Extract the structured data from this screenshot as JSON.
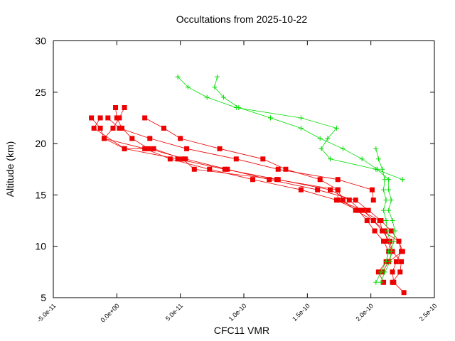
{
  "chart_data": {
    "type": "line",
    "title": "Occultations from 2025-10-22",
    "xlabel": "CFC11 VMR",
    "ylabel": "Altitude (km)",
    "xlim": [
      -5e-11,
      2.5e-10
    ],
    "ylim": [
      5,
      30
    ],
    "xticks": [
      -5e-11,
      0,
      5e-11,
      1e-10,
      1.5e-10,
      2e-10,
      2.5e-10
    ],
    "xtick_labels": [
      "-5.0e-11",
      "0.0e+00",
      "5.0e-11",
      "1.0e-10",
      "1.5e-10",
      "2.0e-10",
      "2.5e-10"
    ],
    "yticks": [
      5,
      10,
      15,
      20,
      25,
      30
    ],
    "ytick_labels": [
      "5",
      "10",
      "15",
      "20",
      "25",
      "30"
    ],
    "grid": false,
    "colors": {
      "red": "#ee0000",
      "green": "#00dd00",
      "axis": "#000000"
    },
    "series": [
      {
        "name": "profile-red-1",
        "color": "#ee0000",
        "marker": "square",
        "points": [
          [
            2.26e-10,
            5.5
          ],
          [
            2.18e-10,
            6.5
          ],
          [
            2.17e-10,
            7.5
          ],
          [
            2.2e-10,
            8.5
          ],
          [
            2.24e-10,
            9.5
          ],
          [
            2.22e-10,
            10.5
          ],
          [
            2.16e-10,
            11.5
          ],
          [
            2.08e-10,
            12.5
          ],
          [
            1.98e-10,
            13.5
          ],
          [
            1.88e-10,
            14.5
          ],
          [
            1.58e-10,
            15.5
          ],
          [
            1.2e-10,
            16.5
          ],
          [
            8.7e-11,
            17.5
          ],
          [
            5.4e-11,
            18.5
          ],
          [
            2.5e-11,
            19.5
          ],
          [
            1.2e-11,
            20.5
          ],
          [
            4e-12,
            21.5
          ],
          [
            0,
            22.5
          ],
          [
            -1e-12,
            23.5
          ]
        ]
      },
      {
        "name": "profile-red-2",
        "color": "#ee0000",
        "marker": "square",
        "points": [
          [
            2.1e-10,
            6.5
          ],
          [
            2.06e-10,
            7.5
          ],
          [
            2.12e-10,
            8.5
          ],
          [
            2.14e-10,
            9.5
          ],
          [
            2.1e-10,
            10.5
          ],
          [
            2.03e-10,
            11.5
          ],
          [
            1.97e-10,
            12.5
          ],
          [
            1.9e-10,
            13.5
          ],
          [
            1.73e-10,
            14.5
          ],
          [
            1.45e-10,
            15.5
          ],
          [
            1.07e-10,
            16.5
          ],
          [
            7.3e-11,
            17.5
          ],
          [
            4.2e-11,
            18.5
          ],
          [
            2.2e-11,
            19.5
          ],
          [
            -1e-11,
            20.5
          ],
          [
            -1.3e-11,
            21.5
          ],
          [
            -2e-11,
            22.5
          ]
        ]
      },
      {
        "name": "profile-red-3",
        "color": "#ee0000",
        "marker": "square",
        "points": [
          [
            2.09e-10,
            7.5
          ],
          [
            2.14e-10,
            8.5
          ],
          [
            2.17e-10,
            9.5
          ],
          [
            2.15e-10,
            10.5
          ],
          [
            2.09e-10,
            11.5
          ],
          [
            2.07e-10,
            12.5
          ],
          [
            1.92e-10,
            13.5
          ],
          [
            1.83e-10,
            14.5
          ],
          [
            1.68e-10,
            15.5
          ],
          [
            1.27e-10,
            16.5
          ],
          [
            8.5e-11,
            17.5
          ],
          [
            4.8e-11,
            18.5
          ],
          [
            6e-12,
            19.5
          ],
          [
            -1e-11,
            20.5
          ],
          [
            -3e-12,
            21.5
          ],
          [
            2e-12,
            22.5
          ],
          [
            6e-12,
            23.5
          ]
        ]
      },
      {
        "name": "profile-red-4",
        "color": "#ee0000",
        "marker": "square",
        "points": [
          [
            2.17e-10,
            6.5
          ],
          [
            2.23e-10,
            7.5
          ],
          [
            2.24e-10,
            8.5
          ],
          [
            2.17e-10,
            9.5
          ],
          [
            2.13e-10,
            10.5
          ],
          [
            2.11e-10,
            11.5
          ],
          [
            2.02e-10,
            12.5
          ],
          [
            1.88e-10,
            13.5
          ],
          [
            1.78e-10,
            14.5
          ],
          [
            1.74e-10,
            15.5
          ],
          [
            1.26e-10,
            16.5
          ],
          [
            6.1e-11,
            17.5
          ],
          [
            5.2e-11,
            18.5
          ],
          [
            2.9e-11,
            19.5
          ],
          [
            6e-12,
            19.5
          ],
          [
            -1.8e-11,
            21.5
          ],
          [
            -1.3e-11,
            22.5
          ]
        ]
      },
      {
        "name": "profile-red-5",
        "color": "#ee0000",
        "marker": "square",
        "points": [
          [
            2.14e-10,
            8.5
          ],
          [
            2.25e-10,
            9.5
          ],
          [
            2.22e-10,
            10.5
          ],
          [
            2.09e-10,
            11.5
          ],
          [
            2.02e-10,
            12.5
          ],
          [
            1.94e-10,
            13.5
          ],
          [
            1.74e-10,
            14.5
          ],
          [
            1.74e-10,
            15.5
          ],
          [
            1.6e-10,
            16.5
          ],
          [
            1.33e-10,
            17.5
          ],
          [
            1.15e-10,
            18.5
          ],
          [
            8.1e-11,
            19.5
          ],
          [
            5e-11,
            20.5
          ],
          [
            3.7e-11,
            21.5
          ],
          [
            2.2e-11,
            22.5
          ]
        ]
      },
      {
        "name": "profile-red-6",
        "color": "#ee0000",
        "marker": "square",
        "points": [
          [
            2.02e-10,
            14.5
          ],
          [
            2.01e-10,
            15.5
          ],
          [
            1.74e-10,
            16.5
          ],
          [
            1.27e-10,
            17.5
          ],
          [
            9.4e-11,
            18.5
          ],
          [
            5.5e-11,
            19.5
          ],
          [
            2.6e-11,
            20.5
          ],
          [
            2e-12,
            21.5
          ],
          [
            -7e-12,
            22.5
          ]
        ]
      },
      {
        "name": "profile-green-1",
        "color": "#00dd00",
        "marker": "cross",
        "points": [
          [
            2.08e-10,
            6.5
          ],
          [
            2.11e-10,
            7.5
          ],
          [
            2.15e-10,
            8.5
          ],
          [
            2.16e-10,
            9.5
          ],
          [
            2.18e-10,
            10.5
          ],
          [
            2.19e-10,
            11.5
          ],
          [
            2.17e-10,
            12.5
          ],
          [
            2.14e-10,
            13.5
          ],
          [
            2.16e-10,
            14.5
          ],
          [
            2.14e-10,
            15.5
          ],
          [
            2.14e-10,
            16.5
          ],
          [
            2.05e-10,
            17.5
          ],
          [
            1.93e-10,
            18.5
          ],
          [
            1.78e-10,
            19.5
          ],
          [
            1.6e-10,
            20.5
          ],
          [
            1.45e-10,
            21.5
          ],
          [
            1.21e-10,
            22.5
          ],
          [
            9.6e-11,
            23.5
          ],
          [
            8.4e-11,
            24.5
          ],
          [
            7.7e-11,
            25.5
          ],
          [
            7.9e-11,
            26.5
          ]
        ]
      },
      {
        "name": "profile-green-2",
        "color": "#00dd00",
        "marker": "cross",
        "points": [
          [
            2.04e-10,
            6.5
          ],
          [
            2.08e-10,
            7.5
          ],
          [
            2.12e-10,
            8.5
          ],
          [
            2.14e-10,
            9.5
          ],
          [
            2.15e-10,
            10.5
          ],
          [
            2.13e-10,
            11.5
          ],
          [
            2.12e-10,
            12.5
          ],
          [
            2.1e-10,
            13.5
          ],
          [
            2.12e-10,
            14.5
          ],
          [
            2.1e-10,
            15.5
          ],
          [
            2.11e-10,
            16.5
          ],
          [
            2.09e-10,
            17.5
          ],
          [
            2.06e-10,
            18.5
          ],
          [
            2.04e-10,
            19.5
          ]
        ]
      },
      {
        "name": "profile-green-3",
        "color": "#00dd00",
        "marker": "cross",
        "points": [
          [
            2.25e-10,
            16.5
          ],
          [
            2.04e-10,
            17.5
          ],
          [
            1.68e-10,
            18.5
          ],
          [
            1.61e-10,
            19.5
          ],
          [
            1.66e-10,
            20.5
          ],
          [
            1.73e-10,
            21.5
          ],
          [
            1.45e-10,
            22.5
          ],
          [
            9.4e-11,
            23.5
          ],
          [
            7.1e-11,
            24.5
          ],
          [
            5.6e-11,
            25.5
          ],
          [
            4.8e-11,
            26.5
          ]
        ]
      }
    ]
  }
}
